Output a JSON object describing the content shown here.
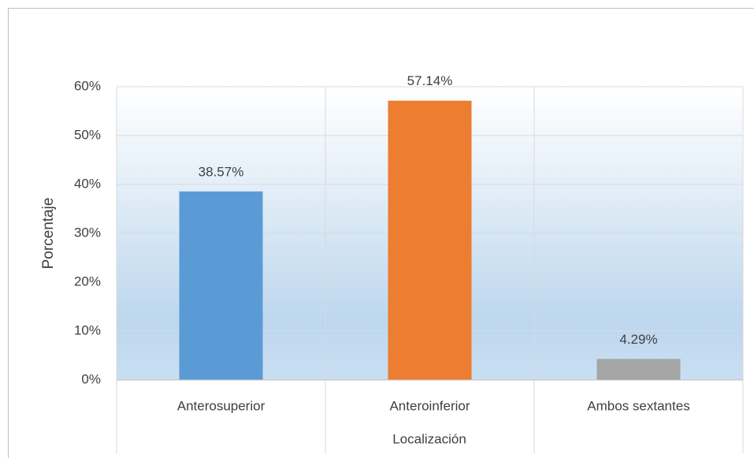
{
  "chart_data": {
    "type": "bar",
    "categories": [
      "Anterosuperior",
      "Anteroinferior",
      "Ambos sextantes"
    ],
    "values": [
      38.57,
      57.14,
      4.29
    ],
    "value_labels": [
      "38.57%",
      "57.14%",
      "4.29%"
    ],
    "colors": [
      "#5b9bd5",
      "#ed7d31",
      "#a5a5a5"
    ],
    "ylim": [
      0,
      60
    ],
    "yticks": [
      {
        "value": 0,
        "label": "0%"
      },
      {
        "value": 10,
        "label": "10%"
      },
      {
        "value": 20,
        "label": "20%"
      },
      {
        "value": 30,
        "label": "30%"
      },
      {
        "value": 40,
        "label": "40%"
      },
      {
        "value": 50,
        "label": "50%"
      },
      {
        "value": 60,
        "label": "60%"
      }
    ],
    "y_label": "Porcentaje",
    "x_label": "Localización",
    "grid": true
  }
}
